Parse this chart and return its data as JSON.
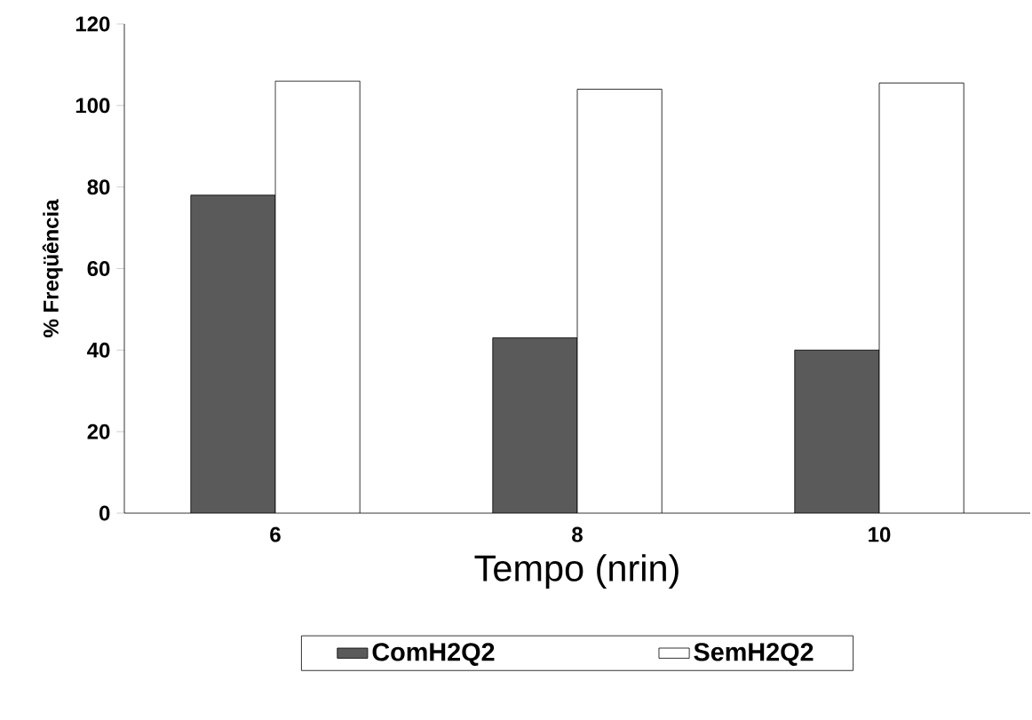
{
  "chart_data": {
    "type": "bar",
    "xlabel": "Tempo (nrin)",
    "ylabel": "% Freqüência",
    "categories": [
      "6",
      "8",
      "10"
    ],
    "series": [
      {
        "name": "ComH2Q2",
        "color": "#5a5a5a",
        "values": [
          78,
          43,
          40
        ]
      },
      {
        "name": "SemH2Q2",
        "color": "#ffffff",
        "values": [
          106,
          104,
          105.5
        ]
      }
    ],
    "ylim": [
      0,
      120
    ],
    "yticks": [
      0,
      20,
      40,
      60,
      80,
      100,
      120
    ],
    "grid": false,
    "legend": "bottom"
  }
}
